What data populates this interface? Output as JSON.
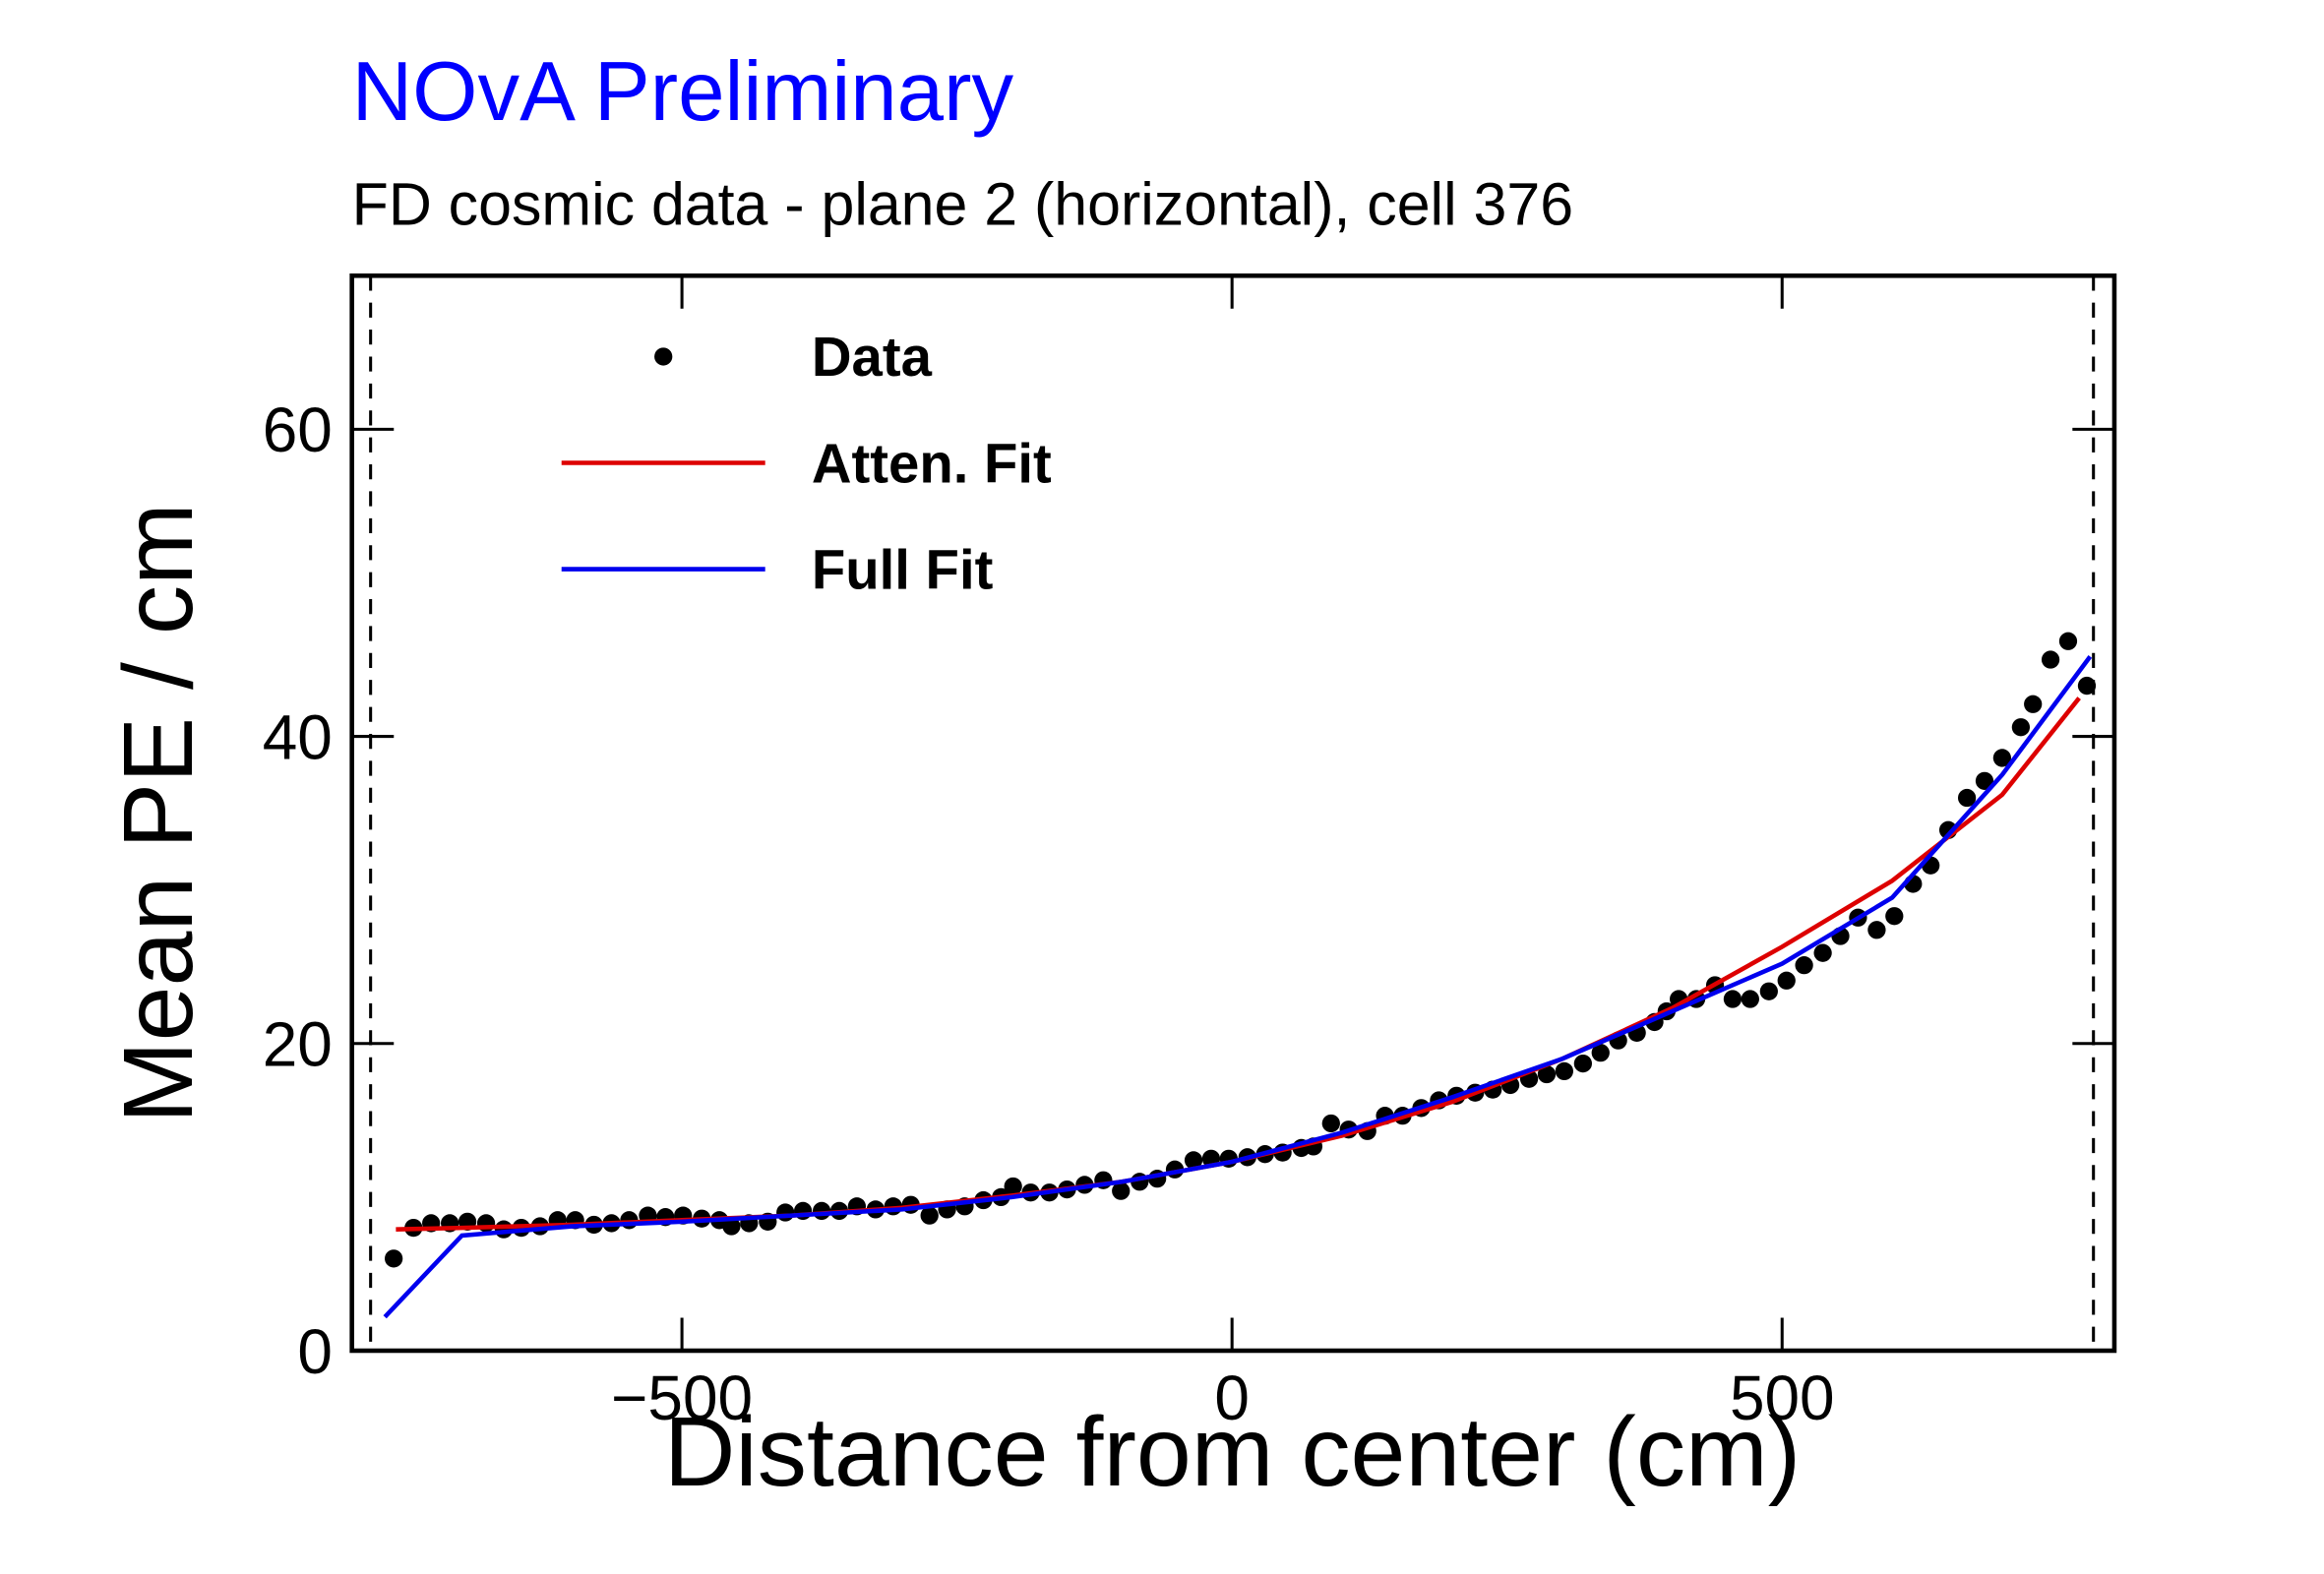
{
  "chart_data": {
    "type": "line",
    "title": "NOvA Preliminary",
    "subtitle": "FD cosmic data - plane 2 (horizontal), cell 376",
    "x_label": "Distance from center (cm)",
    "y_label": "Mean PE / cm",
    "xlim": [
      -800,
      802
    ],
    "ylim": [
      0,
      70
    ],
    "xticks": [
      {
        "value": -500,
        "label": "−500"
      },
      0,
      500
    ],
    "yticks": [
      0,
      20,
      40,
      60
    ],
    "vlines": [
      -783,
      783
    ],
    "legend": "top-left",
    "series": [
      {
        "name": "Data",
        "color": "#000000",
        "mode": "markers",
        "x": [
          -762,
          -744,
          -728,
          -711,
          -695,
          -678,
          -662,
          -646,
          -629,
          -613,
          -597,
          -580,
          -564,
          -548,
          -531,
          -515,
          -499,
          -482,
          -466,
          -455,
          -439,
          -422,
          -406,
          -390,
          -373,
          -357,
          -341,
          -324,
          -308,
          -292,
          -275,
          -259,
          -243,
          -226,
          -210,
          -199,
          -183,
          -166,
          -150,
          -134,
          -117,
          -101,
          -84,
          -68,
          -52,
          -35,
          -19,
          -3,
          14,
          30,
          46,
          63,
          74,
          90,
          106,
          123,
          139,
          155,
          172,
          188,
          204,
          221,
          237,
          253,
          270,
          286,
          302,
          319,
          335,
          351,
          368,
          384,
          395,
          406,
          422,
          439,
          455,
          471,
          488,
          504,
          520,
          537,
          553,
          569,
          586,
          602,
          619,
          635,
          651,
          668,
          684,
          700,
          717,
          728,
          744,
          760,
          777
        ],
        "values": [
          6.0,
          8.0,
          8.3,
          8.3,
          8.4,
          8.3,
          7.9,
          8.0,
          8.1,
          8.5,
          8.5,
          8.2,
          8.3,
          8.5,
          8.8,
          8.7,
          8.8,
          8.6,
          8.5,
          8.1,
          8.3,
          8.4,
          9.0,
          9.1,
          9.1,
          9.1,
          9.4,
          9.2,
          9.4,
          9.5,
          8.8,
          9.2,
          9.4,
          9.8,
          10.0,
          10.7,
          10.3,
          10.3,
          10.5,
          10.8,
          11.1,
          10.4,
          11.0,
          11.2,
          11.8,
          12.4,
          12.5,
          12.5,
          12.6,
          12.8,
          12.9,
          13.2,
          13.3,
          14.8,
          14.4,
          14.3,
          15.3,
          15.3,
          15.8,
          16.3,
          16.6,
          16.8,
          17.0,
          17.3,
          17.7,
          18.0,
          18.2,
          18.7,
          19.4,
          20.2,
          20.7,
          21.4,
          22.1,
          22.9,
          22.9,
          23.8,
          22.9,
          22.9,
          23.4,
          24.1,
          25.1,
          25.9,
          27.0,
          28.2,
          27.4,
          28.3,
          30.4,
          31.6,
          33.9,
          36.0,
          37.1,
          38.6,
          40.6,
          42.1,
          45.0,
          46.2,
          43.3
        ]
      },
      {
        "name": "Atten. Fit",
        "color": "#dd0000",
        "mode": "lines",
        "x": [
          -760,
          -700,
          -600,
          -500,
          -400,
          -300,
          -200,
          -100,
          0,
          100,
          200,
          300,
          400,
          500,
          600,
          700,
          770
        ],
        "values": [
          7.9,
          8.0,
          8.2,
          8.5,
          8.8,
          9.3,
          10.1,
          11.0,
          12.3,
          14.0,
          16.2,
          19.0,
          22.3,
          26.3,
          30.6,
          36.2,
          42.5
        ]
      },
      {
        "name": "Full Fit",
        "color": "#0000ee",
        "mode": "lines",
        "x": [
          -770,
          -700,
          -600,
          -500,
          -400,
          -300,
          -200,
          -100,
          0,
          100,
          200,
          300,
          400,
          500,
          600,
          700,
          780
        ],
        "values": [
          2.2,
          7.5,
          8.1,
          8.4,
          8.8,
          9.2,
          10.0,
          11.0,
          12.3,
          14.2,
          16.5,
          19.0,
          22.1,
          25.2,
          29.5,
          37.5,
          45.2
        ]
      }
    ]
  }
}
